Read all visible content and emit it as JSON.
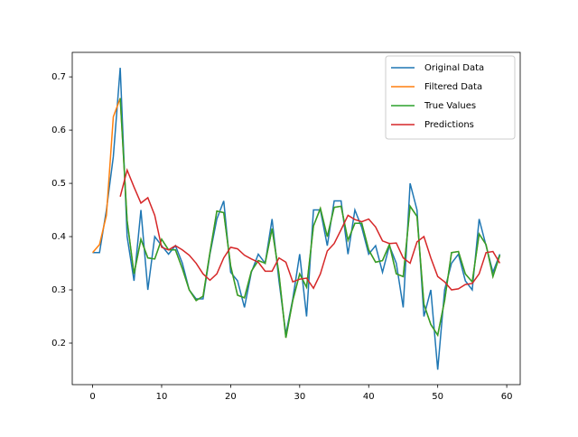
{
  "chart_data": {
    "type": "line",
    "x": [
      0,
      1,
      2,
      3,
      4,
      5,
      6,
      7,
      8,
      9,
      10,
      11,
      12,
      13,
      14,
      15,
      16,
      17,
      18,
      19,
      20,
      21,
      22,
      23,
      24,
      25,
      26,
      27,
      28,
      29,
      30,
      31,
      32,
      33,
      34,
      35,
      36,
      37,
      38,
      39,
      40,
      41,
      42,
      43,
      44,
      45,
      46,
      47,
      48,
      49,
      50,
      51,
      52,
      53,
      54,
      55,
      56,
      57,
      58,
      59
    ],
    "series": [
      {
        "name": "Original Data",
        "color": "#1f77b4",
        "values": [
          0.37,
          0.37,
          0.45,
          0.55,
          0.717,
          0.4,
          0.317,
          0.45,
          0.3,
          0.4,
          0.383,
          0.367,
          0.383,
          0.35,
          0.3,
          0.283,
          0.283,
          0.367,
          0.433,
          0.467,
          0.333,
          0.317,
          0.267,
          0.333,
          0.367,
          0.35,
          0.433,
          0.317,
          0.217,
          0.283,
          0.367,
          0.25,
          0.45,
          0.45,
          0.383,
          0.467,
          0.467,
          0.367,
          0.45,
          0.417,
          0.367,
          0.383,
          0.333,
          0.383,
          0.35,
          0.267,
          0.5,
          0.45,
          0.25,
          0.3,
          0.15,
          0.3,
          0.35,
          0.367,
          0.317,
          0.3,
          0.433,
          0.383,
          0.333,
          0.367
        ]
      },
      {
        "name": "Filtered Data",
        "color": "#ff7f0e",
        "values": [
          0.37,
          0.385,
          0.44,
          0.625,
          0.66,
          0.43,
          0.33,
          0.395,
          0.36,
          0.358,
          0.395,
          0.375,
          0.375,
          0.34,
          0.3,
          0.28,
          0.288,
          0.37,
          0.448,
          0.445,
          0.345,
          0.29,
          0.285,
          0.335,
          0.355,
          0.35,
          0.415,
          0.33,
          0.21,
          0.28,
          0.33,
          0.305,
          0.42,
          0.453,
          0.4,
          0.455,
          0.457,
          0.393,
          0.425,
          0.425,
          0.375,
          0.352,
          0.355,
          0.385,
          0.33,
          0.325,
          0.457,
          0.438,
          0.273,
          0.235,
          0.215,
          0.28,
          0.37,
          0.372,
          0.33,
          0.315,
          0.405,
          0.385,
          0.325,
          0.365
        ]
      },
      {
        "name": "True Values",
        "color": "#2ca02c",
        "values": [
          null,
          null,
          null,
          null,
          0.66,
          0.43,
          0.33,
          0.395,
          0.36,
          0.358,
          0.395,
          0.375,
          0.375,
          0.34,
          0.3,
          0.28,
          0.288,
          0.37,
          0.448,
          0.445,
          0.345,
          0.29,
          0.285,
          0.335,
          0.355,
          0.35,
          0.415,
          0.33,
          0.21,
          0.28,
          0.33,
          0.305,
          0.42,
          0.453,
          0.4,
          0.455,
          0.457,
          0.393,
          0.425,
          0.425,
          0.375,
          0.352,
          0.355,
          0.385,
          0.33,
          0.325,
          0.457,
          0.438,
          0.273,
          0.235,
          0.215,
          0.28,
          0.37,
          0.372,
          0.33,
          0.315,
          0.405,
          0.385,
          0.325,
          0.365
        ]
      },
      {
        "name": "Predictions",
        "color": "#d62728",
        "values": [
          null,
          null,
          null,
          null,
          0.475,
          0.525,
          0.493,
          0.463,
          0.473,
          0.44,
          0.38,
          0.375,
          0.383,
          0.375,
          0.365,
          0.35,
          0.33,
          0.318,
          0.33,
          0.36,
          0.38,
          0.377,
          0.365,
          0.358,
          0.352,
          0.335,
          0.335,
          0.36,
          0.352,
          0.315,
          0.32,
          0.322,
          0.303,
          0.33,
          0.373,
          0.387,
          0.413,
          0.44,
          0.432,
          0.428,
          0.433,
          0.418,
          0.392,
          0.387,
          0.388,
          0.36,
          0.35,
          0.39,
          0.4,
          0.36,
          0.325,
          0.315,
          0.3,
          0.302,
          0.31,
          0.312,
          0.33,
          0.37,
          0.372,
          0.35
        ]
      }
    ],
    "xlim": [
      -2.95,
      61.95
    ],
    "ylim": [
      0.122,
      0.746
    ],
    "xticks": [
      0,
      10,
      20,
      30,
      40,
      50,
      60
    ],
    "yticks": [
      0.2,
      0.3,
      0.4,
      0.5,
      0.6,
      0.7
    ],
    "grid": false,
    "legend": "upper right"
  }
}
